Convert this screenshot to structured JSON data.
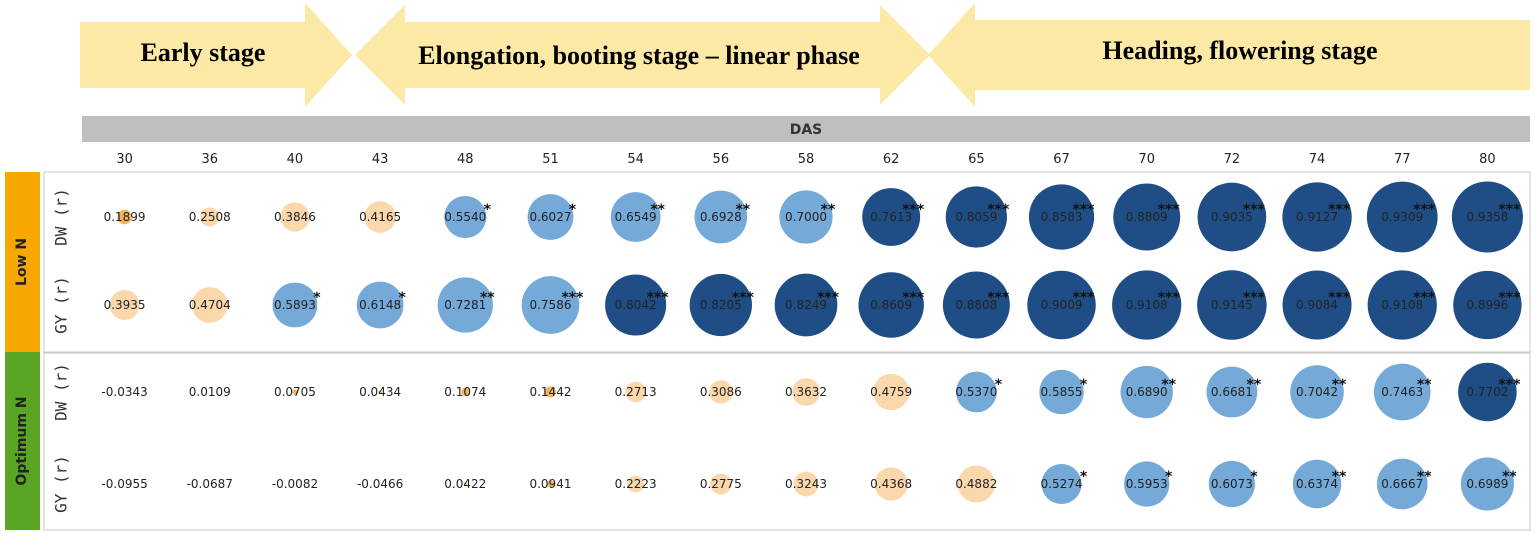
{
  "colors": {
    "arrow": "#fde9a6",
    "das_bar": "#bfbfbf",
    "low_n": "#f7a800",
    "optimum_n": "#5aa624",
    "neg_strong": "#f4b25a",
    "neg_light": "#fbd7ac",
    "pos_sig": "#74a9d8",
    "pos_highly_sig": "#1f4e86"
  },
  "stages": [
    {
      "label": "Early stage"
    },
    {
      "label": "Elongation, booting stage – linear phase"
    },
    {
      "label": "Heading, flowering stage"
    }
  ],
  "chart_data": {
    "type": "heatmap",
    "xlabel": "DAS",
    "das": [
      "30",
      "36",
      "40",
      "43",
      "48",
      "51",
      "54",
      "56",
      "58",
      "62",
      "65",
      "67",
      "70",
      "72",
      "74",
      "77",
      "80"
    ],
    "groups": [
      {
        "name": "Low N",
        "rows": [
          {
            "label": "DW (r)",
            "values": [
              "0.1899",
              "0.2508",
              "0.3846",
              "0.4165",
              "0.5540",
              "0.6027",
              "0.6549",
              "0.6928",
              "0.7000",
              "0.7613",
              "0.8059",
              "0.8583",
              "0.8809",
              "0.9035",
              "0.9127",
              "0.9309",
              "0.9358"
            ],
            "sig": [
              "",
              "",
              "",
              "",
              "*",
              "*",
              "**",
              "**",
              "**",
              "***",
              "***",
              "***",
              "***",
              "***",
              "***",
              "***",
              "***"
            ]
          },
          {
            "label": "GY (r)",
            "values": [
              "0.3935",
              "0.4704",
              "0.5893",
              "0.6148",
              "0.7281",
              "0.7586",
              "0.8042",
              "0.8205",
              "0.8249",
              "0.8609",
              "0.8808",
              "0.9009",
              "0.9108",
              "0.9145",
              "0.9084",
              "0.9108",
              "0.8996"
            ],
            "sig": [
              "",
              "",
              "*",
              "*",
              "**",
              "***",
              "***",
              "***",
              "***",
              "***",
              "***",
              "***",
              "***",
              "***",
              "***",
              "***",
              "***"
            ]
          }
        ]
      },
      {
        "name": "Optimum N",
        "rows": [
          {
            "label": "DW (r)",
            "values": [
              "-0.0343",
              "0.0109",
              "0.0705",
              "0.0434",
              "0.1074",
              "0.1442",
              "0.2713",
              "0.3086",
              "0.3632",
              "0.4759",
              "0.5370",
              "0.5855",
              "0.6890",
              "0.6681",
              "0.7042",
              "0.7463",
              "0.7702"
            ],
            "sig": [
              "",
              "",
              "",
              "",
              "",
              "",
              "",
              "",
              "",
              "",
              "*",
              "*",
              "**",
              "**",
              "**",
              "**",
              "***"
            ]
          },
          {
            "label": "GY (r)",
            "values": [
              "-0.0955",
              "-0.0687",
              "-0.0082",
              "-0.0466",
              "0.0422",
              "0.0941",
              "0.2223",
              "0.2775",
              "0.3243",
              "0.4368",
              "0.4882",
              "0.5274",
              "0.5953",
              "0.6073",
              "0.6374",
              "0.6667",
              "0.6989"
            ],
            "sig": [
              "",
              "",
              "",
              "",
              "",
              "",
              "",
              "",
              "",
              "",
              "",
              "*",
              "*",
              "*",
              "**",
              "**",
              "**"
            ]
          }
        ]
      }
    ]
  }
}
